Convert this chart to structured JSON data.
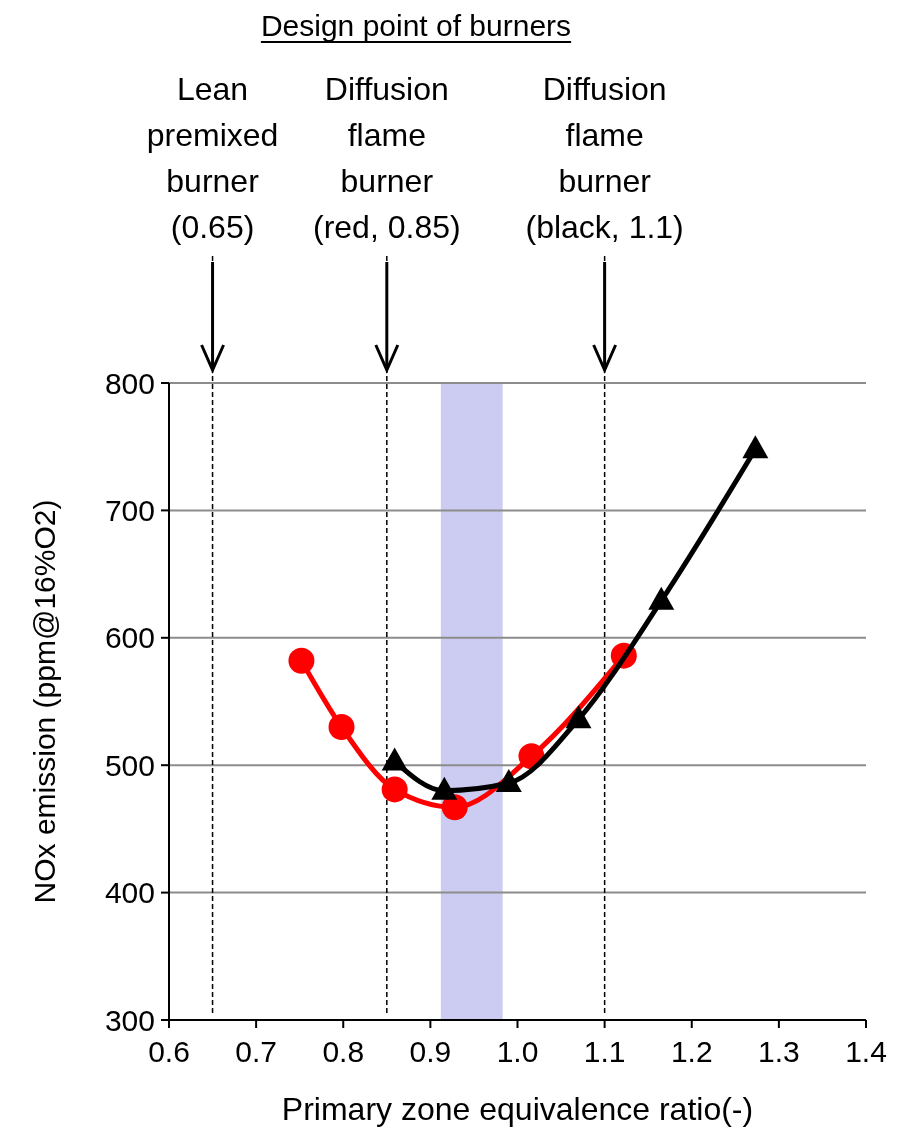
{
  "chart_data": {
    "type": "line",
    "title": "Design point of burners",
    "xlabel": "Primary zone equivalence ratio(-)",
    "ylabel": "NOx emission (ppm@16%O2)",
    "xlim": [
      0.6,
      1.4
    ],
    "xticks": [
      0.6,
      0.7,
      0.8,
      0.9,
      {
        "value": 1,
        "label": "1.0"
      },
      1.1,
      1.2,
      1.3,
      1.4
    ],
    "ylim": [
      300,
      800
    ],
    "yticks": [
      300,
      400,
      500,
      600,
      700,
      800
    ],
    "grid": "y",
    "line_style": "solid",
    "series": [
      {
        "color": "#ff0000",
        "marker": "circle",
        "x": [
          0.752,
          0.798,
          0.859,
          0.928,
          1.016,
          1.122
        ],
        "values": [
          582,
          530,
          481,
          467,
          507,
          586
        ]
      },
      {
        "color": "#000000",
        "marker": "triangle",
        "x": [
          0.859,
          0.916,
          0.99,
          1.07,
          1.165,
          1.273
        ],
        "values": [
          503,
          480,
          486,
          536,
          629,
          748
        ]
      }
    ],
    "ref_lines": [
      {
        "axis": "x",
        "value": 0.65,
        "label": "Lean premixed burner (0.65)",
        "color": "#000000",
        "line_style": "dashed"
      },
      {
        "axis": "x",
        "value": 0.85,
        "label": "Diffusion flame burner (red, 0.85)",
        "color": "#000000",
        "line_style": "dashed"
      },
      {
        "axis": "x",
        "value": 1.1,
        "label": "Diffusion flame burner (black, 1.1)",
        "color": "#000000",
        "line_style": "dashed"
      }
    ],
    "bands": [
      {
        "axis": "x",
        "from": 0.912,
        "to": 0.983,
        "color": "#ccccf2"
      }
    ]
  }
}
